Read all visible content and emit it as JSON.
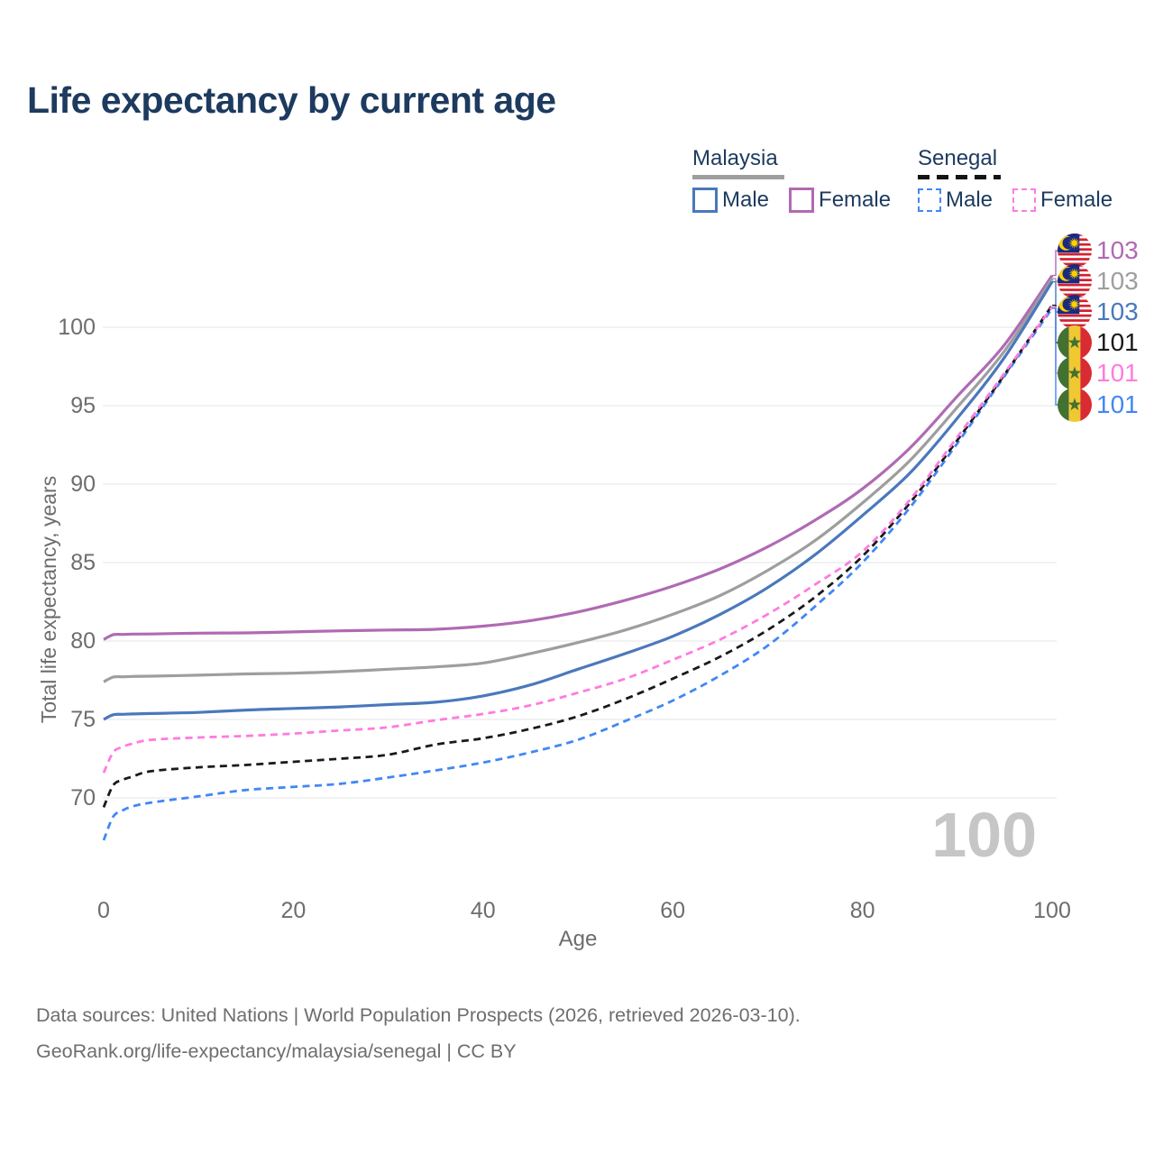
{
  "title": "Life expectancy by current age",
  "watermark_age": "100",
  "colors": {
    "title": "#1d3a5f",
    "axis_text": "#6d6d6d",
    "grid": "#e9e9e9",
    "watermark": "#c6c6c6",
    "footer_text": "#6e6e6e"
  },
  "legend": {
    "malaysia": {
      "label": "Malaysia",
      "male": "Male",
      "female": "Female",
      "rule_color": "#9e9e9e",
      "male_color": "#4a78bc",
      "female_color": "#b06ab3",
      "dashed": false
    },
    "senegal": {
      "label": "Senegal",
      "male": "Male",
      "female": "Female",
      "rule_color": "#141414",
      "male_color": "#4187f5",
      "female_color": "#ff7bdf",
      "dashed": true
    }
  },
  "axes": {
    "x_label": "Age",
    "y_label": "Total life expectancy, years",
    "x_ticks": [
      0,
      20,
      40,
      60,
      80,
      100
    ],
    "y_ticks": [
      70,
      75,
      80,
      85,
      90,
      95,
      100
    ]
  },
  "footer": {
    "line1": "Data sources: United Nations | World Population Prospects (2026, retrieved 2026-03-10).",
    "line2": "GeoRank.org/life-expectancy/malaysia/senegal | CC BY"
  },
  "chart_data": {
    "type": "line",
    "title": "Life expectancy by current age",
    "xlabel": "Age",
    "ylabel": "Total life expectancy, years",
    "xlim": [
      0,
      100
    ],
    "ylim": [
      66,
      104
    ],
    "grid": "horizontal",
    "legend_position": "top-right",
    "x": [
      0,
      1,
      2,
      3,
      5,
      10,
      15,
      20,
      25,
      30,
      35,
      40,
      45,
      50,
      55,
      60,
      65,
      70,
      75,
      80,
      85,
      90,
      95,
      100
    ],
    "series": [
      {
        "name": "Malaysia Female",
        "country": "Malaysia",
        "sex": "Female",
        "flag": "malaysia",
        "color": "#b06ab3",
        "dashed": false,
        "end_value_label": "103",
        "values": [
          80.1,
          80.4,
          80.42,
          80.44,
          80.45,
          80.5,
          80.52,
          80.58,
          80.65,
          80.7,
          80.75,
          80.95,
          81.3,
          81.85,
          82.6,
          83.5,
          84.6,
          86.0,
          87.7,
          89.7,
          92.3,
          95.6,
          98.9,
          103.3
        ]
      },
      {
        "name": "Malaysia Both sexes",
        "country": "Malaysia",
        "sex": "Both sexes",
        "flag": "malaysia",
        "color": "#9e9e9e",
        "dashed": false,
        "end_value_label": "103",
        "values": [
          77.4,
          77.7,
          77.72,
          77.74,
          77.76,
          77.82,
          77.9,
          77.95,
          78.05,
          78.2,
          78.35,
          78.6,
          79.2,
          79.9,
          80.7,
          81.7,
          82.9,
          84.5,
          86.4,
          88.8,
          91.5,
          94.9,
          98.5,
          103.1
        ]
      },
      {
        "name": "Malaysia Male",
        "country": "Malaysia",
        "sex": "Male",
        "flag": "malaysia",
        "color": "#4a78bc",
        "dashed": false,
        "end_value_label": "103",
        "values": [
          75.0,
          75.3,
          75.33,
          75.35,
          75.38,
          75.45,
          75.6,
          75.7,
          75.8,
          75.95,
          76.1,
          76.5,
          77.2,
          78.2,
          79.2,
          80.3,
          81.7,
          83.4,
          85.5,
          88.0,
          90.7,
          94.2,
          98.1,
          102.9
        ]
      },
      {
        "name": "Senegal Male",
        "country": "Senegal",
        "sex": "Male",
        "flag": "senegal",
        "color": "#4187f5",
        "dashed": true,
        "end_value_label": "101",
        "values": [
          67.3,
          68.8,
          69.2,
          69.45,
          69.7,
          70.1,
          70.5,
          70.7,
          70.9,
          71.3,
          71.75,
          72.25,
          72.9,
          73.7,
          74.9,
          76.2,
          77.8,
          79.7,
          82.2,
          85.0,
          88.5,
          92.6,
          96.9,
          101.2
        ]
      },
      {
        "name": "Senegal Both sexes",
        "country": "Senegal",
        "sex": "Both sexes",
        "flag": "senegal",
        "color": "#1a1a1a",
        "dashed": true,
        "end_value_label": "101",
        "values": [
          69.4,
          70.8,
          71.15,
          71.35,
          71.7,
          71.95,
          72.1,
          72.3,
          72.5,
          72.75,
          73.4,
          73.8,
          74.4,
          75.2,
          76.3,
          77.6,
          79.0,
          80.7,
          82.8,
          85.4,
          88.8,
          92.8,
          97.0,
          101.4
        ]
      },
      {
        "name": "Senegal Female",
        "country": "Senegal",
        "sex": "Female",
        "flag": "senegal",
        "color": "#ff7bdf",
        "dashed": true,
        "end_value_label": "101",
        "values": [
          71.6,
          72.9,
          73.25,
          73.45,
          73.7,
          73.85,
          73.95,
          74.1,
          74.3,
          74.5,
          74.95,
          75.35,
          75.9,
          76.7,
          77.6,
          78.8,
          80.1,
          81.7,
          83.6,
          85.7,
          89.0,
          93.0,
          97.1,
          101.3
        ]
      }
    ],
    "end_labels_top_to_bottom": [
      "Malaysia Female",
      "Malaysia Both sexes",
      "Malaysia Male",
      "Senegal Both sexes",
      "Senegal Female",
      "Senegal Male"
    ]
  }
}
